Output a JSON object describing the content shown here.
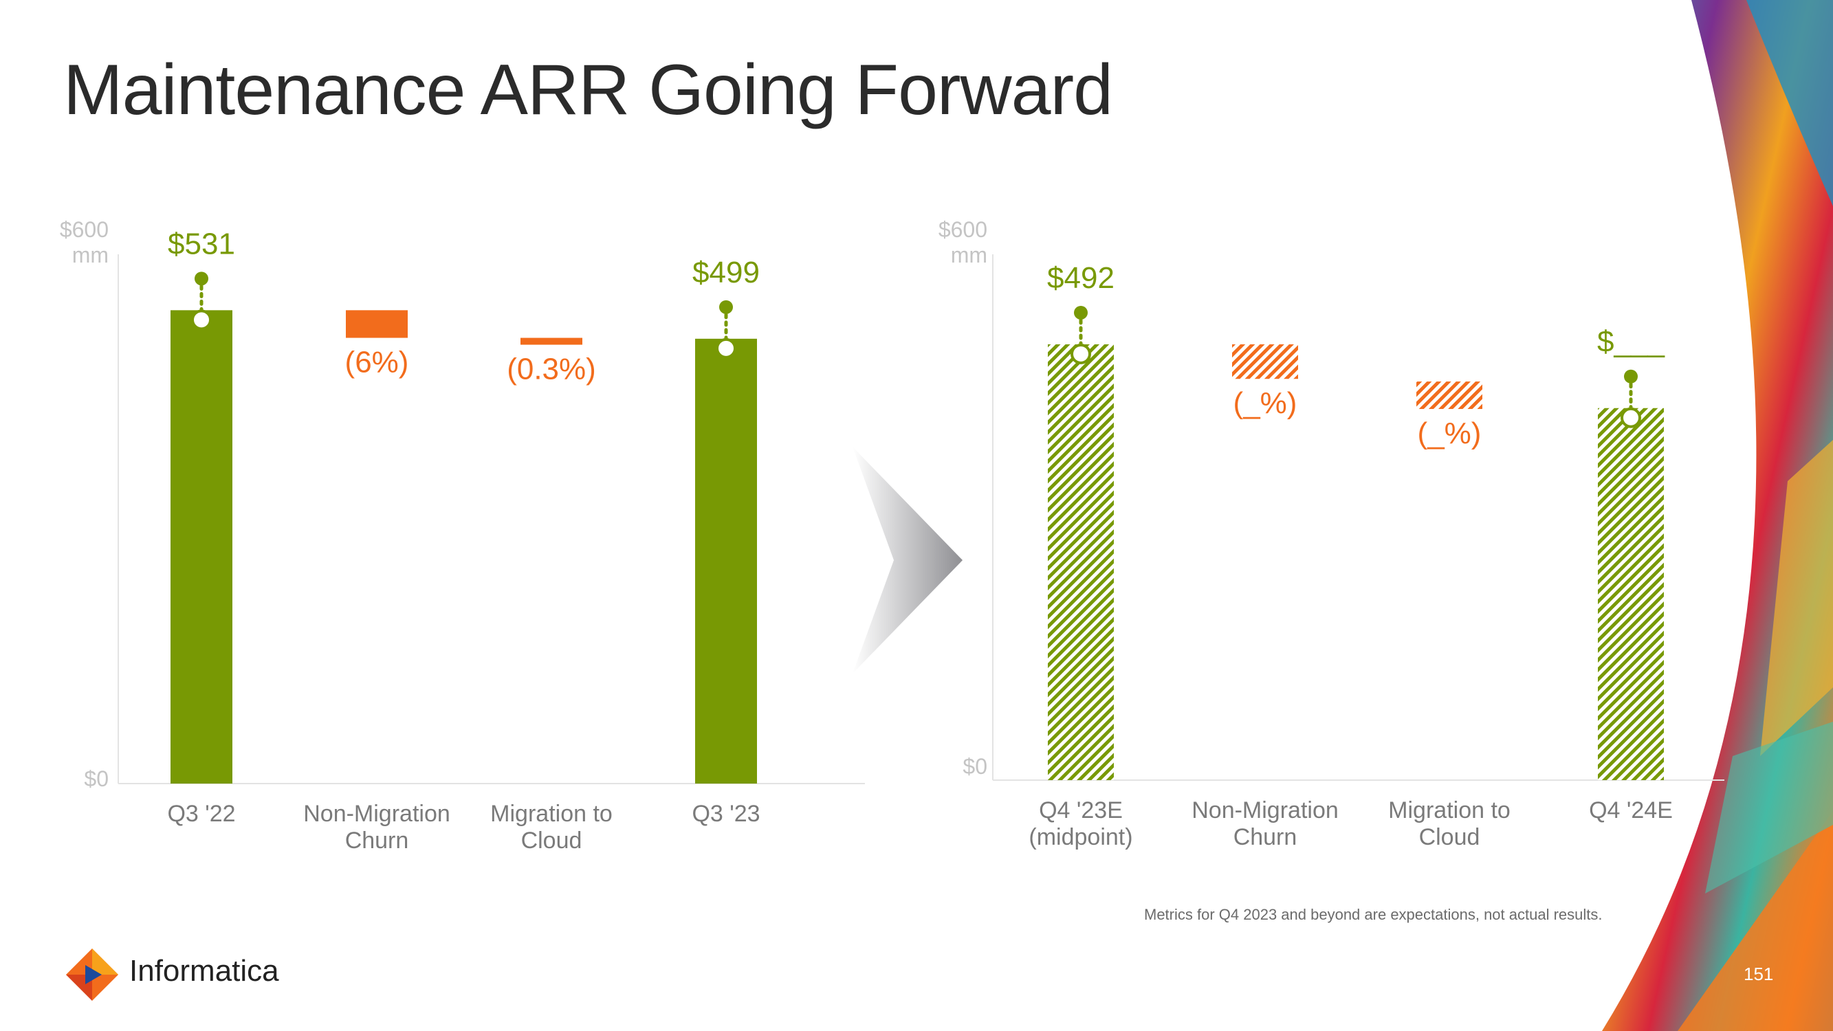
{
  "slide": {
    "title": "Maintenance ARR Going Forward",
    "footnote": "Metrics for Q4 2023 and beyond are expectations, not actual results.",
    "brand": "Informatica",
    "page_number": "151"
  },
  "colors": {
    "green": "#789904",
    "orange": "#f26c1c",
    "axis_text": "#c4c4c4",
    "tick_text": "#7a7a7a"
  },
  "chart_data": [
    {
      "type": "bar",
      "subtype": "waterfall",
      "ytop_label": "$600\nmm",
      "ybottom_label": "$0",
      "ylim": [
        0,
        600
      ],
      "categories": [
        "Q3 '22",
        "Non-Migration\nChurn",
        "Migration to\nCloud",
        "Q3 '23"
      ],
      "bars": [
        {
          "kind": "total",
          "value": 531,
          "label": "$531"
        },
        {
          "kind": "decrease",
          "from": 531,
          "to": 500,
          "label": "(6%)"
        },
        {
          "kind": "decrease",
          "from": 500,
          "to": 499,
          "label": "(0.3%)"
        },
        {
          "kind": "total",
          "value": 499,
          "label": "$499"
        }
      ]
    },
    {
      "type": "bar",
      "subtype": "waterfall",
      "style": "hatched",
      "ytop_label": "$600\nmm",
      "ybottom_label": "$0",
      "ylim": [
        0,
        600
      ],
      "categories": [
        "Q4 '23E\n(midpoint)",
        "Non-Migration\nChurn",
        "Migration to\nCloud",
        "Q4 '24E"
      ],
      "bars": [
        {
          "kind": "total",
          "value": 492,
          "label": "$492"
        },
        {
          "kind": "decrease",
          "from": 492,
          "to": 453,
          "label": "(_%)"
        },
        {
          "kind": "decrease",
          "from": 450,
          "to": 419,
          "label": "(_%)"
        },
        {
          "kind": "total",
          "value": 420,
          "label": "$___"
        }
      ]
    }
  ]
}
